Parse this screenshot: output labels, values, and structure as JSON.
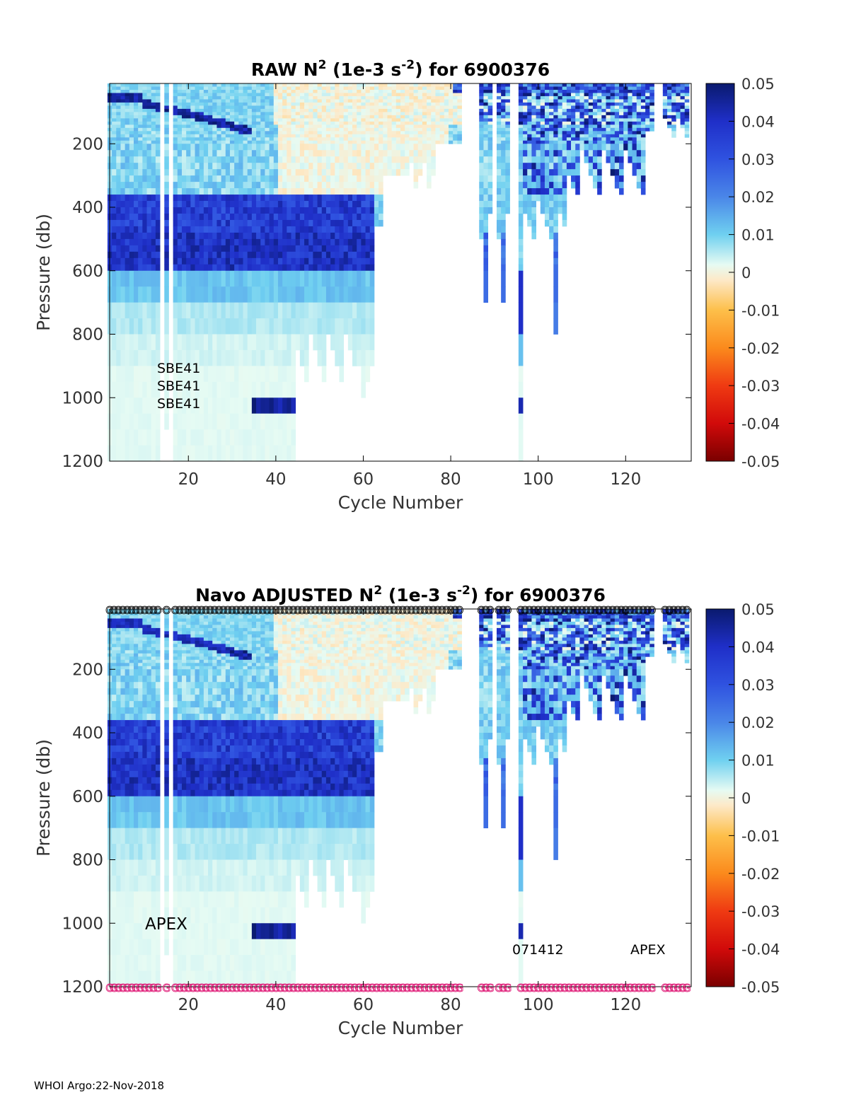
{
  "chart_data": [
    {
      "type": "heatmap",
      "title_prefix": "RAW N",
      "title_mid": " (1e-3 s",
      "title_suffix": ") for 6900376",
      "title_sup1": "2",
      "title_sup2": "-2",
      "xlabel": "Cycle Number",
      "ylabel": "Pressure (db)",
      "xlim": [
        2,
        135
      ],
      "ylim": [
        1200,
        10
      ],
      "xticks": [
        "20",
        "40",
        "60",
        "80",
        "100",
        "120"
      ],
      "yticks": [
        "200",
        "400",
        "600",
        "800",
        "1000",
        "1200"
      ],
      "colorbar_ticks": [
        "0.05",
        "0.04",
        "0.03",
        "0.02",
        "0.01",
        "0",
        "-0.01",
        "-0.02",
        "-0.03",
        "-0.04",
        "-0.05"
      ],
      "clim": [
        -0.05,
        0.05
      ],
      "annotations": [
        "SBE41",
        "SBE41",
        "SBE41"
      ]
    },
    {
      "type": "heatmap",
      "title_prefix": "Navo  ADJUSTED N",
      "title_mid": " (1e-3 s",
      "title_suffix": ") for 6900376",
      "title_sup1": "2",
      "title_sup2": "-2",
      "xlabel": "Cycle Number",
      "ylabel": "Pressure (db)",
      "xlim": [
        2,
        135
      ],
      "ylim": [
        1200,
        10
      ],
      "xticks": [
        "20",
        "40",
        "60",
        "80",
        "100",
        "120"
      ],
      "yticks": [
        "200",
        "400",
        "600",
        "800",
        "1000",
        "1200"
      ],
      "colorbar_ticks": [
        "0.05",
        "0.04",
        "0.03",
        "0.02",
        "0.01",
        "0",
        "-0.01",
        "-0.02",
        "-0.03",
        "-0.04",
        "-0.05"
      ],
      "clim": [
        -0.05,
        0.05
      ],
      "top_marker": "O",
      "bottom_marker": "G",
      "annotations": [
        "APEX",
        "071412",
        "APEX"
      ]
    }
  ],
  "footer": "WHOI Argo:22-Nov-2018"
}
